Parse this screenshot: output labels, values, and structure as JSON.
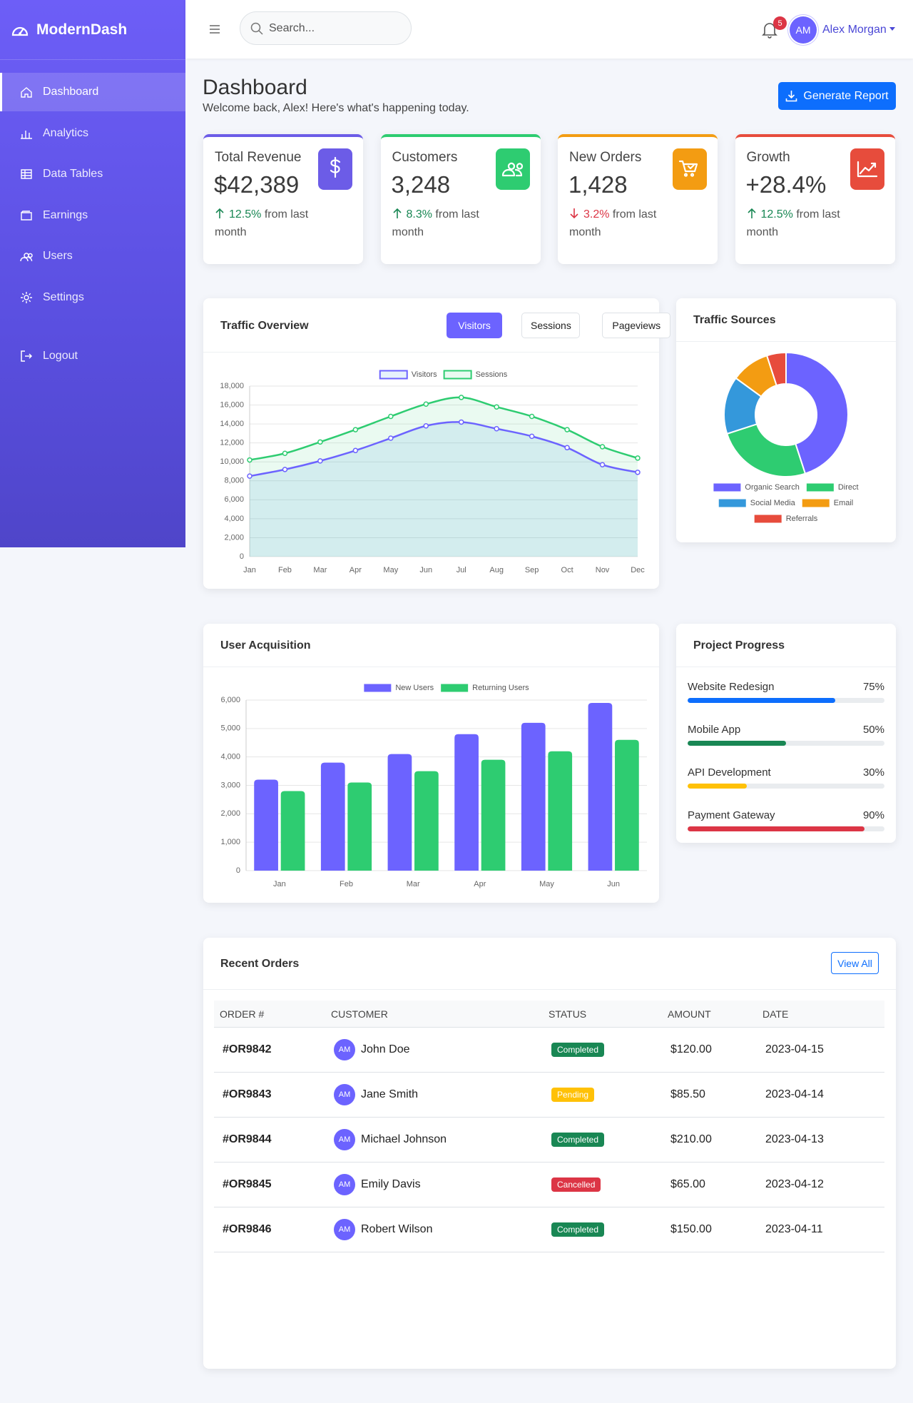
{
  "sidebar": {
    "brand": "ModernDash",
    "nav": [
      "Dashboard",
      "Analytics",
      "Data Tables",
      "Earnings",
      "Users",
      "Settings"
    ],
    "active": 0,
    "logout": "Logout"
  },
  "header": {
    "search_placeholder": "Search...",
    "notifications": "5",
    "avatar": "AM",
    "user": "Alex Morgan"
  },
  "page": {
    "title": "Dashboard",
    "subtitle": "Welcome back, Alex! Here's what's happening today.",
    "button": "Generate Report"
  },
  "stats": [
    {
      "title": "Total Revenue",
      "value": "$42,389",
      "change": "12.5%",
      "note": "from last month",
      "trend": "up",
      "change_color": "#198754",
      "color": "#6c5ce7"
    },
    {
      "title": "Customers",
      "value": "3,248",
      "change": "8.3%",
      "note": "from last month",
      "trend": "up",
      "change_color": "#198754",
      "color": "#2ecc71"
    },
    {
      "title": "New Orders",
      "value": "1,428",
      "change": "3.2%",
      "note": "from last month",
      "trend": "down",
      "change_color": "#dc3545",
      "color": "#f39c12"
    },
    {
      "title": "Growth",
      "value": "+28.4%",
      "change": "12.5%",
      "note": "from last month",
      "trend": "up",
      "change_color": "#198754",
      "color": "#e74c3c"
    }
  ],
  "traffic_tabs": {
    "options": [
      "Visitors",
      "Sessions",
      "Pageviews"
    ],
    "active": 0
  },
  "chart_data": [
    {
      "type": "line",
      "title": "Traffic Overview",
      "categories": [
        "Jan",
        "Feb",
        "Mar",
        "Apr",
        "May",
        "Jun",
        "Jul",
        "Aug",
        "Sep",
        "Oct",
        "Nov",
        "Dec"
      ],
      "series": [
        {
          "name": "Visitors",
          "color": "#6c63ff",
          "fill": "rgba(52,152,219,0.12)",
          "values": [
            8500,
            9200,
            10100,
            11200,
            12500,
            13800,
            14200,
            13500,
            12700,
            11500,
            9700,
            8900
          ]
        },
        {
          "name": "Sessions",
          "color": "#2ecc71",
          "fill": "rgba(46,204,113,0.1)",
          "values": [
            10200,
            10900,
            12100,
            13400,
            14800,
            16100,
            16800,
            15800,
            14800,
            13400,
            11600,
            10400
          ]
        }
      ],
      "ylim": [
        0,
        18000
      ],
      "yticks": [
        0,
        {
          "value": 2000,
          "label": "2,000"
        },
        {
          "value": 4000,
          "label": "4,000"
        },
        {
          "value": 6000,
          "label": "6,000"
        },
        {
          "value": 8000,
          "label": "8,000"
        },
        {
          "value": 10000,
          "label": "10,000"
        },
        {
          "value": 12000,
          "label": "12,000"
        },
        {
          "value": 14000,
          "label": "14,000"
        },
        {
          "value": 16000,
          "label": "16,000"
        },
        {
          "value": 18000,
          "label": "18,000"
        }
      ],
      "grid": true,
      "legend": "top"
    },
    {
      "type": "doughnut",
      "title": "Traffic Sources",
      "categories": [
        "Organic Search",
        "Direct",
        "Social Media",
        "Email",
        "Referrals"
      ],
      "values": [
        45,
        25,
        15,
        10,
        5
      ],
      "colors": [
        "#6c63ff",
        "#2ecc71",
        "#3498db",
        "#f39c12",
        "#e74c3c"
      ],
      "legend": "bottom"
    },
    {
      "type": "bar",
      "title": "User Acquisition",
      "categories": [
        "Jan",
        "Feb",
        "Mar",
        "Apr",
        "May",
        "Jun"
      ],
      "series": [
        {
          "name": "New Users",
          "color": "#6c63ff",
          "values": [
            3200,
            3800,
            4100,
            4800,
            5200,
            5900
          ]
        },
        {
          "name": "Returning Users",
          "color": "#2ecc71",
          "values": [
            2800,
            3100,
            3500,
            3900,
            4200,
            4600
          ]
        }
      ],
      "ylim": [
        0,
        6000
      ],
      "yticks": [
        0,
        {
          "value": 1000,
          "label": "1,000"
        },
        {
          "value": 2000,
          "label": "2,000"
        },
        {
          "value": 3000,
          "label": "3,000"
        },
        {
          "value": 4000,
          "label": "4,000"
        },
        {
          "value": 5000,
          "label": "5,000"
        },
        {
          "value": 6000,
          "label": "6,000"
        }
      ],
      "grid": true,
      "legend": "top"
    }
  ],
  "projects": {
    "title": "Project Progress",
    "items": [
      {
        "name": "Website Redesign",
        "value": 75,
        "value_label": "75%",
        "color": "#0d6efd"
      },
      {
        "name": "Mobile App",
        "value": 50,
        "value_label": "50%",
        "color": "#198754"
      },
      {
        "name": "API Development",
        "value": 30,
        "value_label": "30%",
        "color": "#ffc107"
      },
      {
        "name": "Payment Gateway",
        "value": 90,
        "value_label": "90%",
        "color": "#dc3545"
      }
    ]
  },
  "orders": {
    "title": "Recent Orders",
    "button": "View All",
    "columns": [
      "ORDER #",
      "CUSTOMER",
      "STATUS",
      "AMOUNT",
      "DATE"
    ],
    "rows": [
      {
        "id": "#OR9842",
        "avatar": "AM",
        "customer": "John Doe",
        "status": "Completed",
        "status_color": "#198754",
        "amount": "$120.00",
        "date": "2023-04-15"
      },
      {
        "id": "#OR9843",
        "avatar": "AM",
        "customer": "Jane Smith",
        "status": "Pending",
        "status_color": "#ffc107",
        "amount": "$85.50",
        "date": "2023-04-14"
      },
      {
        "id": "#OR9844",
        "avatar": "AM",
        "customer": "Michael Johnson",
        "status": "Completed",
        "status_color": "#198754",
        "amount": "$210.00",
        "date": "2023-04-13"
      },
      {
        "id": "#OR9845",
        "avatar": "AM",
        "customer": "Emily Davis",
        "status": "Cancelled",
        "status_color": "#dc3545",
        "amount": "$65.00",
        "date": "2023-04-12"
      },
      {
        "id": "#OR9846",
        "avatar": "AM",
        "customer": "Robert Wilson",
        "status": "Completed",
        "status_color": "#198754",
        "amount": "$150.00",
        "date": "2023-04-11"
      }
    ]
  }
}
